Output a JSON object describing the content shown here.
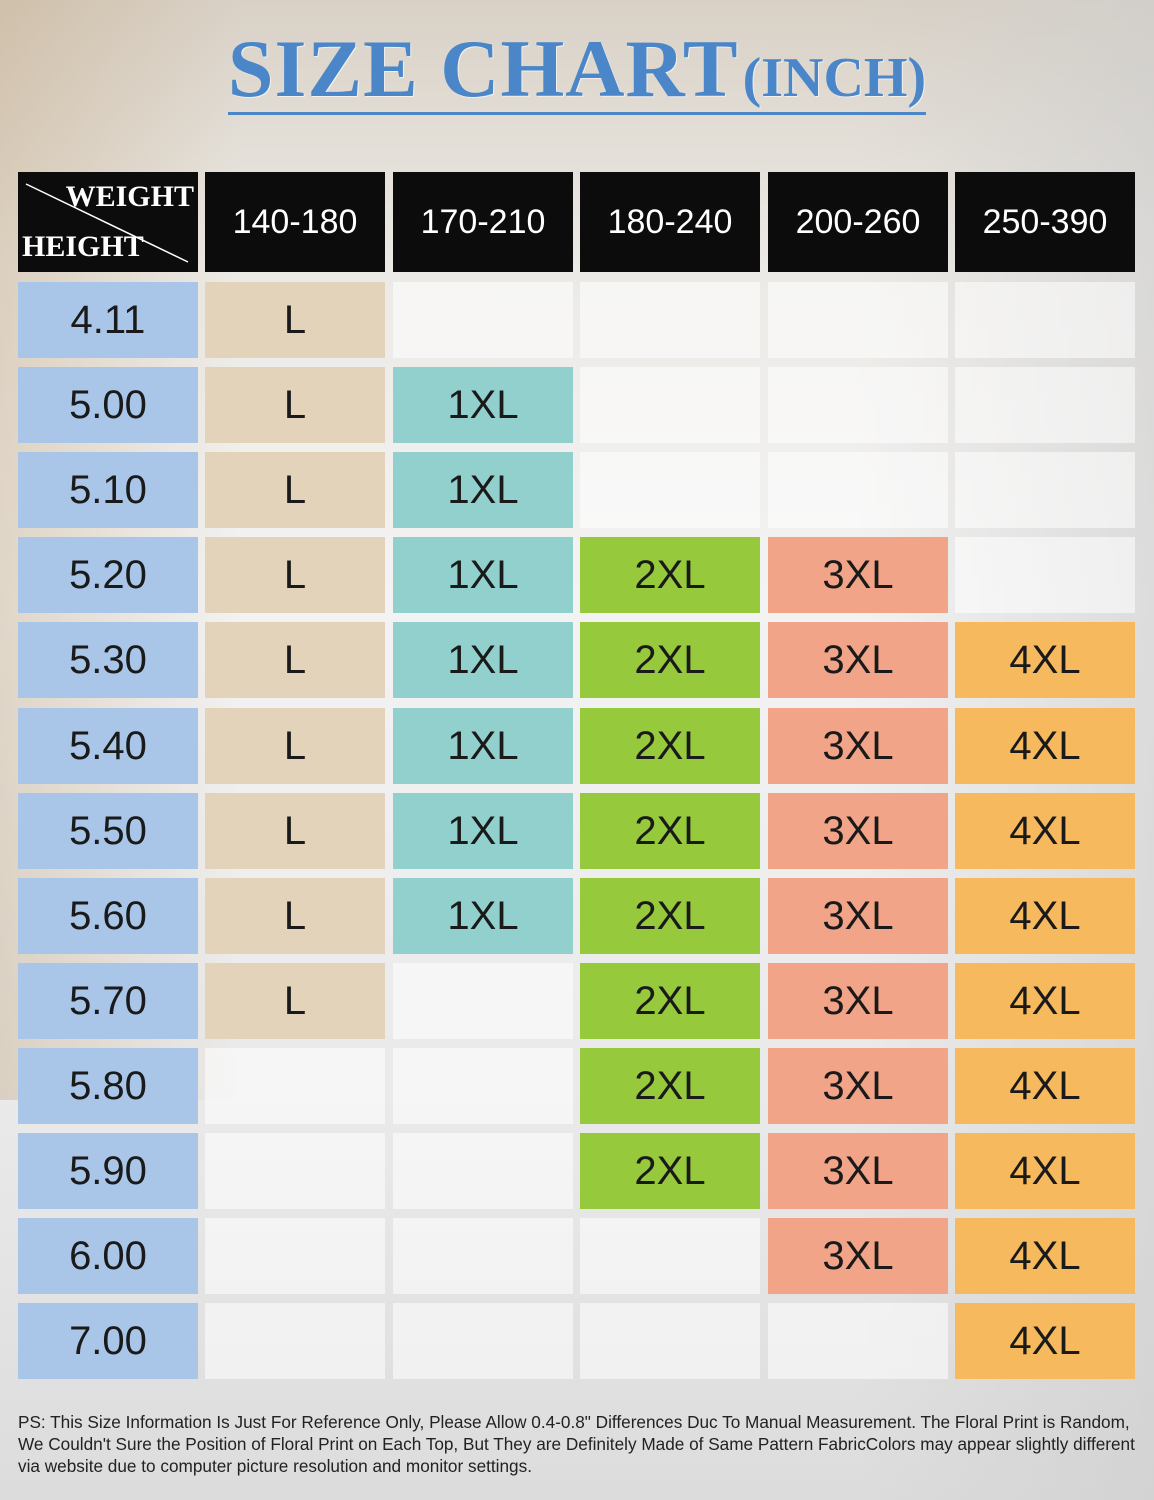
{
  "title": {
    "main": "SIZE CHART",
    "unit": "(INCH)"
  },
  "chart_data": {
    "type": "table",
    "corner": {
      "column_axis": "WEIGHT",
      "row_axis": "HEIGHT"
    },
    "columns": [
      "140-180",
      "170-210",
      "180-240",
      "200-260",
      "250-390"
    ],
    "rows": [
      {
        "height": "4.11",
        "sizes": [
          "L",
          "",
          "",
          "",
          ""
        ]
      },
      {
        "height": "5.00",
        "sizes": [
          "L",
          "1XL",
          "",
          "",
          ""
        ]
      },
      {
        "height": "5.10",
        "sizes": [
          "L",
          "1XL",
          "",
          "",
          ""
        ]
      },
      {
        "height": "5.20",
        "sizes": [
          "L",
          "1XL",
          "2XL",
          "3XL",
          ""
        ]
      },
      {
        "height": "5.30",
        "sizes": [
          "L",
          "1XL",
          "2XL",
          "3XL",
          "4XL"
        ]
      },
      {
        "height": "5.40",
        "sizes": [
          "L",
          "1XL",
          "2XL",
          "3XL",
          "4XL"
        ]
      },
      {
        "height": "5.50",
        "sizes": [
          "L",
          "1XL",
          "2XL",
          "3XL",
          "4XL"
        ]
      },
      {
        "height": "5.60",
        "sizes": [
          "L",
          "1XL",
          "2XL",
          "3XL",
          "4XL"
        ]
      },
      {
        "height": "5.70",
        "sizes": [
          "L",
          "",
          "2XL",
          "3XL",
          "4XL"
        ]
      },
      {
        "height": "5.80",
        "sizes": [
          "",
          "",
          "2XL",
          "3XL",
          "4XL"
        ]
      },
      {
        "height": "5.90",
        "sizes": [
          "",
          "",
          "2XL",
          "3XL",
          "4XL"
        ]
      },
      {
        "height": "6.00",
        "sizes": [
          "",
          "",
          "",
          "3XL",
          "4XL"
        ]
      },
      {
        "height": "7.00",
        "sizes": [
          "",
          "",
          "",
          "",
          "4XL"
        ]
      }
    ],
    "colors": {
      "header": "#0c0c0c",
      "height_label": "#a9c6e8",
      "L": "#e3d3bb",
      "1XL": "#92d0cd",
      "2XL": "#97c93c",
      "3XL": "#f1a487",
      "4XL": "#f6b95d"
    }
  },
  "note": "PS: This Size Information Is Just For Reference Only, Please Allow 0.4-0.8\" Differences Duc To Manual Measurement. The Floral Print is Random, We Couldn't Sure the Position of Floral Print on Each Top, But They are Definitely Made of Same Pattern FabricColors may appear slightly different via website due to computer picture resolution and monitor settings."
}
